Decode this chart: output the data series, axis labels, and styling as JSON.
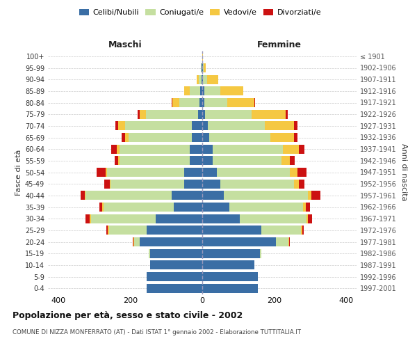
{
  "age_groups": [
    "0-4",
    "5-9",
    "10-14",
    "15-19",
    "20-24",
    "25-29",
    "30-34",
    "35-39",
    "40-44",
    "45-49",
    "50-54",
    "55-59",
    "60-64",
    "65-69",
    "70-74",
    "75-79",
    "80-84",
    "85-89",
    "90-94",
    "95-99",
    "100+"
  ],
  "birth_years": [
    "1997-2001",
    "1992-1996",
    "1987-1991",
    "1982-1986",
    "1977-1981",
    "1972-1976",
    "1967-1971",
    "1962-1966",
    "1957-1961",
    "1952-1956",
    "1947-1951",
    "1942-1946",
    "1937-1941",
    "1932-1936",
    "1927-1931",
    "1922-1926",
    "1917-1921",
    "1912-1916",
    "1907-1911",
    "1902-1906",
    "≤ 1901"
  ],
  "maschi": {
    "celibi": [
      155,
      155,
      145,
      145,
      175,
      155,
      130,
      80,
      85,
      50,
      50,
      35,
      35,
      30,
      30,
      12,
      8,
      5,
      2,
      1,
      0
    ],
    "coniugati": [
      0,
      0,
      0,
      5,
      15,
      105,
      180,
      195,
      240,
      205,
      215,
      195,
      195,
      175,
      185,
      145,
      55,
      30,
      8,
      2,
      0
    ],
    "vedovi": [
      0,
      0,
      0,
      0,
      2,
      3,
      3,
      3,
      3,
      3,
      5,
      5,
      8,
      10,
      20,
      18,
      20,
      15,
      5,
      0,
      0
    ],
    "divorziati": [
      0,
      0,
      0,
      0,
      2,
      5,
      12,
      8,
      10,
      15,
      25,
      10,
      15,
      10,
      8,
      5,
      2,
      0,
      0,
      0,
      0
    ]
  },
  "femmine": {
    "nubili": [
      155,
      155,
      145,
      160,
      205,
      165,
      105,
      75,
      60,
      50,
      40,
      30,
      30,
      20,
      15,
      8,
      5,
      5,
      2,
      1,
      0
    ],
    "coniugate": [
      0,
      0,
      0,
      5,
      35,
      110,
      185,
      205,
      235,
      205,
      205,
      190,
      195,
      170,
      160,
      130,
      65,
      45,
      12,
      3,
      0
    ],
    "vedove": [
      0,
      0,
      0,
      0,
      3,
      3,
      5,
      8,
      10,
      15,
      20,
      25,
      45,
      65,
      80,
      95,
      75,
      65,
      30,
      5,
      1
    ],
    "divorziate": [
      0,
      0,
      0,
      0,
      2,
      5,
      12,
      12,
      25,
      15,
      25,
      12,
      15,
      10,
      10,
      5,
      2,
      0,
      0,
      0,
      0
    ]
  },
  "colors": {
    "celibi": "#3A6EA5",
    "coniugati": "#C5DFA0",
    "vedovi": "#F5C842",
    "divorziati": "#CC1111"
  },
  "xlim": 430,
  "title": "Popolazione per età, sesso e stato civile - 2002",
  "subtitle": "COMUNE DI NIZZA MONFERRATO (AT) - Dati ISTAT 1° gennaio 2002 - Elaborazione TUTTITALIA.IT",
  "ylabel_left": "Fasce di età",
  "ylabel_right": "Anni di nascita",
  "xlabel_left": "Maschi",
  "xlabel_right": "Femmine",
  "bg_color": "#ffffff",
  "grid_color": "#cccccc"
}
